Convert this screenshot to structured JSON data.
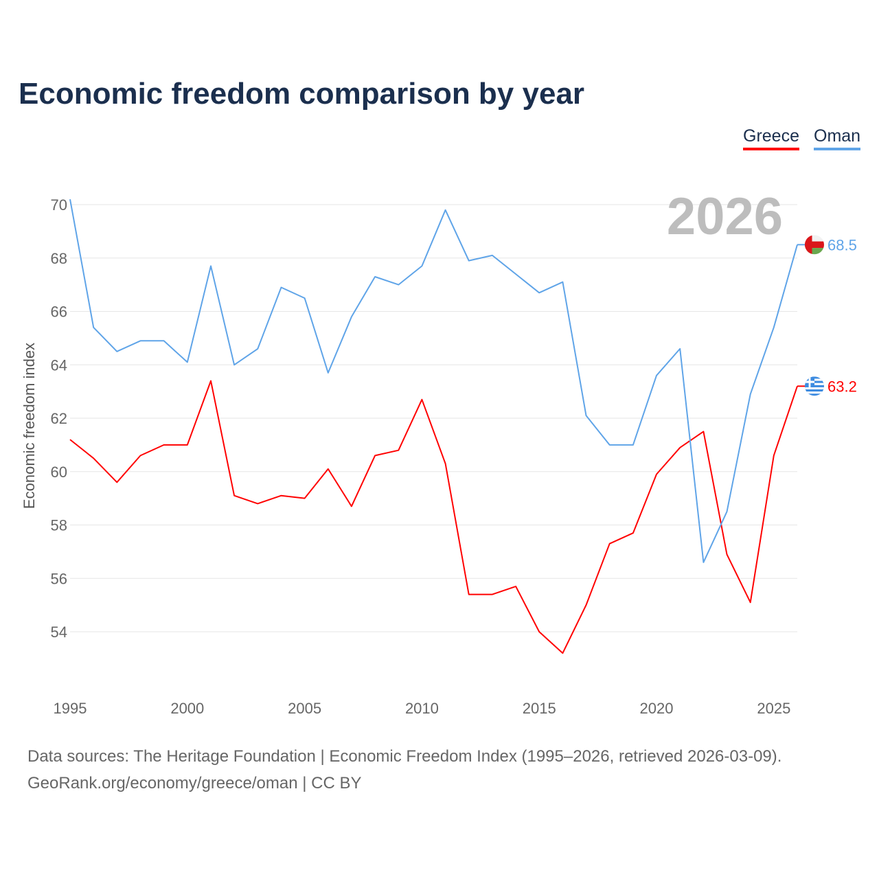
{
  "chart_data": {
    "type": "line",
    "title": "Economic freedom comparison by year",
    "ylabel": "Economic freedom index",
    "xlabel": "",
    "ylim": [
      52,
      70
    ],
    "xlim": [
      1995,
      2026
    ],
    "yticks": [
      54,
      56,
      58,
      60,
      62,
      64,
      66,
      68,
      70
    ],
    "xticks": [
      1995,
      2000,
      2005,
      2010,
      2015,
      2020,
      2025
    ],
    "grid": true,
    "legend_position": "top-right",
    "current_year_label": "2026",
    "x": [
      1995,
      1996,
      1997,
      1998,
      1999,
      2000,
      2001,
      2002,
      2003,
      2004,
      2005,
      2006,
      2007,
      2008,
      2009,
      2010,
      2011,
      2012,
      2013,
      2014,
      2015,
      2016,
      2017,
      2018,
      2019,
      2020,
      2021,
      2022,
      2023,
      2024,
      2025,
      2026
    ],
    "series": [
      {
        "name": "Greece",
        "color": "#ff0000",
        "end_label": "63.2",
        "values": [
          61.2,
          60.5,
          59.6,
          60.6,
          61.0,
          61.0,
          63.4,
          59.1,
          58.8,
          59.1,
          59.0,
          60.1,
          58.7,
          60.6,
          60.8,
          62.7,
          60.3,
          55.4,
          55.4,
          55.7,
          54.0,
          53.2,
          55.0,
          57.3,
          57.7,
          59.9,
          60.9,
          61.5,
          56.9,
          55.1,
          60.6,
          63.2
        ]
      },
      {
        "name": "Oman",
        "color": "#5fa4e8",
        "end_label": "68.5",
        "values": [
          70.2,
          65.4,
          64.5,
          64.9,
          64.9,
          64.1,
          67.7,
          64.0,
          64.6,
          66.9,
          66.5,
          63.7,
          65.8,
          67.3,
          67.0,
          67.7,
          69.8,
          67.9,
          68.1,
          67.4,
          66.7,
          67.1,
          62.1,
          61.0,
          61.0,
          63.6,
          64.6,
          56.6,
          58.5,
          62.9,
          65.4,
          68.5
        ]
      }
    ]
  },
  "footer": {
    "sources": "Data sources: The Heritage Foundation | Economic Freedom Index (1995–2026, retrieved 2026-03-09).",
    "credit": "GeoRank.org/economy/greece/oman | CC BY"
  },
  "icons": {
    "greece_flag": "greece-flag-icon",
    "oman_flag": "oman-flag-icon"
  }
}
